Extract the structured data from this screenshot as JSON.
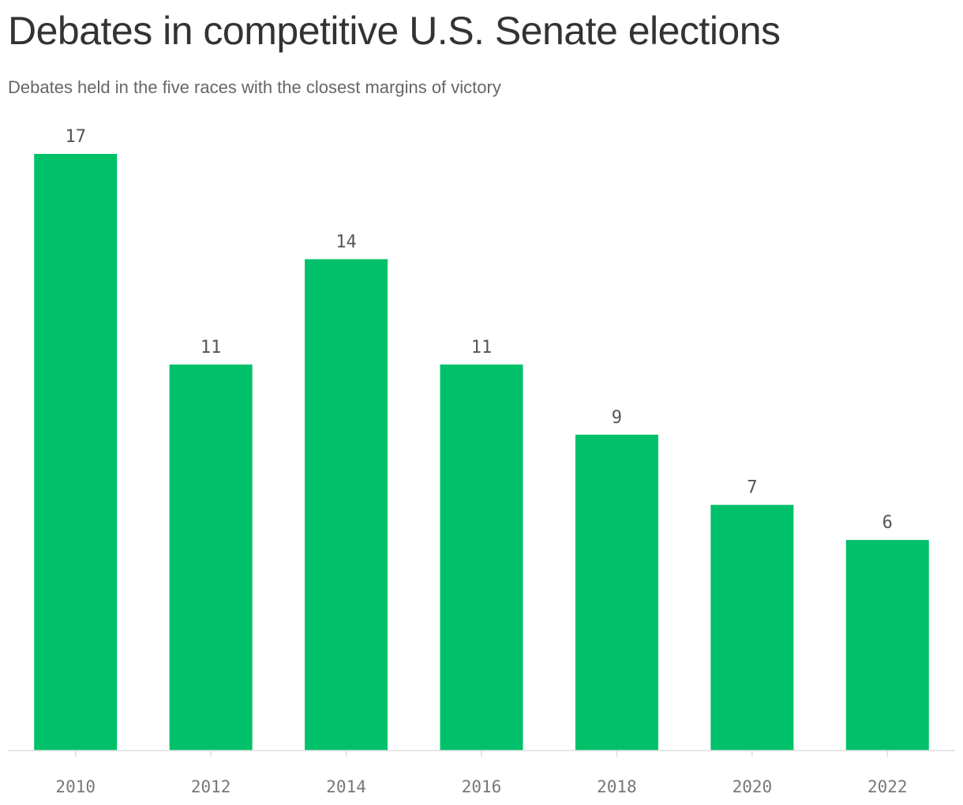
{
  "header": {
    "title": "Debates in competitive U.S. Senate elections",
    "subtitle": "Debates held in the five races with the closest margins of victory"
  },
  "chart_data": {
    "type": "bar",
    "title": "Debates in competitive U.S. Senate elections",
    "subtitle": "Debates held in the five races with the closest margins of victory",
    "categories": [
      "2010",
      "2012",
      "2014",
      "2016",
      "2018",
      "2020",
      "2022"
    ],
    "values": [
      17,
      11,
      14,
      11,
      9,
      7,
      6
    ],
    "xlabel": "",
    "ylabel": "",
    "ylim": [
      0,
      17
    ],
    "grid": false,
    "legend": "none",
    "colors": {
      "bar": "#00c16a",
      "baseline": "#dddddd",
      "value_label": "#555555",
      "tick_label": "#777777"
    }
  }
}
